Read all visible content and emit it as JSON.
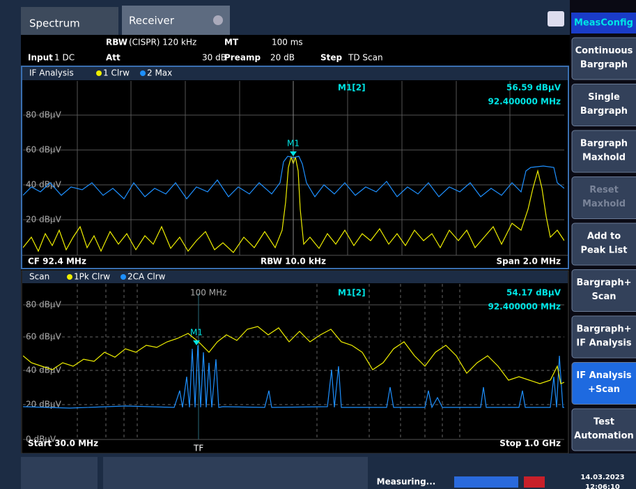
{
  "tabs": {
    "spectrum": "Spectrum",
    "receiver": "Receiver"
  },
  "header": {
    "rbw_label": "RBW",
    "rbw_value": "(CISPR) 120 kHz",
    "mt_label": "MT",
    "mt_value": "100 ms",
    "input_label": "Input",
    "input_value": "1 DC",
    "att_label": "Att",
    "att_value": "30 dB",
    "preamp_label": "Preamp",
    "preamp_value": "20 dB",
    "step_label": "Step",
    "step_value": "TD Scan"
  },
  "panels": [
    {
      "title": "IF Analysis",
      "trace1": "1 Clrw",
      "trace2": "2 Max",
      "y_labels": [
        "80 dBµV",
        "60 dBµV",
        "40 dBµV",
        "20 dBµV"
      ],
      "marker_name": "M1[2]",
      "marker_level": "56.59 dBµV",
      "marker_freq": "92.400000 MHz",
      "marker_tag": "M1",
      "footer_left": "CF 92.4 MHz",
      "footer_center": "RBW 10.0 kHz",
      "footer_right": "Span 2.0 MHz"
    },
    {
      "title": "Scan",
      "trace1": "1Pk Clrw",
      "trace2": "2CA Clrw",
      "y_labels": [
        "80 dBµV",
        "60 dBµV",
        "40 dBµV",
        "20 dBµV",
        "0 dBµV"
      ],
      "marker_name": "M1[2]",
      "marker_level": "54.17 dBµV",
      "marker_freq": "92.400000 MHz",
      "marker_tag": "M1",
      "freq_line": "100 MHz",
      "tf": "TF",
      "footer_left": "Start 30.0 MHz",
      "footer_right": "Stop 1.0 GHz"
    }
  ],
  "softkeys": {
    "menu": "MeasConfig",
    "keys": [
      [
        "Continuous",
        "Bargraph"
      ],
      [
        "Single",
        "Bargraph"
      ],
      [
        "Bargraph",
        "Maxhold"
      ],
      [
        "Reset",
        "Maxhold"
      ],
      [
        "Add to",
        "Peak List"
      ],
      [
        "Bargraph+",
        "Scan"
      ],
      [
        "Bargraph+",
        "IF Analysis"
      ],
      [
        "IF Analysis",
        "+Scan"
      ],
      [
        "Test",
        "Automation"
      ]
    ]
  },
  "status": {
    "state": "Measuring...",
    "date": "14.03.2023",
    "time": "12:06:10"
  }
}
